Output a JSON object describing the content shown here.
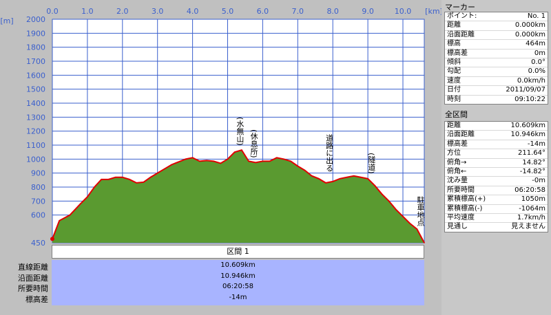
{
  "chart_data": {
    "type": "area",
    "xlabel": "",
    "ylabel": "",
    "x_unit": "[km]",
    "y_unit": "[m]",
    "x_ticks": [
      "0.0",
      "1.0",
      "2.0",
      "3.0",
      "4.0",
      "5.0",
      "6.0",
      "7.0",
      "8.0",
      "9.0",
      "10.0"
    ],
    "y_ticks": [
      "2000",
      "1900",
      "1800",
      "1700",
      "1600",
      "1500",
      "1400",
      "1300",
      "1200",
      "1100",
      "1000",
      "900",
      "800",
      "700",
      "600",
      "450"
    ],
    "xlim": [
      0,
      10.609
    ],
    "ylim": [
      450,
      2000
    ],
    "series": [
      {
        "x": [
          0.0,
          0.2,
          0.5,
          0.8,
          1.0,
          1.2,
          1.4,
          1.6,
          1.8,
          2.0,
          2.2,
          2.4,
          2.6,
          2.8,
          3.0,
          3.2,
          3.4,
          3.6,
          3.8,
          4.0,
          4.2,
          4.4,
          4.6,
          4.8,
          5.0,
          5.2,
          5.4,
          5.6,
          5.8,
          6.0,
          6.2,
          6.4,
          6.6,
          6.8,
          7.0,
          7.2,
          7.4,
          7.6,
          7.8,
          8.0,
          8.2,
          8.4,
          8.6,
          8.8,
          9.0,
          9.2,
          9.4,
          9.6,
          9.8,
          10.0,
          10.2,
          10.4,
          10.609
        ],
        "values": [
          464,
          560,
          600,
          680,
          730,
          800,
          855,
          855,
          870,
          870,
          855,
          830,
          835,
          870,
          900,
          930,
          960,
          980,
          1000,
          1010,
          985,
          990,
          985,
          970,
          1000,
          1050,
          1065,
          985,
          975,
          985,
          985,
          1010,
          1000,
          985,
          950,
          920,
          880,
          860,
          830,
          840,
          860,
          870,
          880,
          870,
          860,
          810,
          750,
          700,
          640,
          590,
          540,
          500,
          450
        ]
      }
    ],
    "annotations": [
      "(水無山)",
      "(休息所)",
      "道路に出る",
      "(隧道)",
      "駐車地点"
    ],
    "grid": true,
    "fill_color": "#5a9a30",
    "line_color": "#e00000"
  },
  "marker": {
    "title": "マーカー",
    "rows": [
      {
        "k": "ポイント:",
        "v": "No. 1"
      },
      {
        "k": "距離",
        "v": "0.000km"
      },
      {
        "k": "沿面距離",
        "v": "0.000km"
      },
      {
        "k": "標高",
        "v": "464m"
      },
      {
        "k": "標高差",
        "v": "0m"
      },
      {
        "k": "傾斜",
        "v": "0.0°"
      },
      {
        "k": "勾配",
        "v": "0.0%"
      },
      {
        "k": "速度",
        "v": "0.0km/h"
      },
      {
        "k": "日付",
        "v": "2011/09/07"
      },
      {
        "k": "時刻",
        "v": "09:10:22"
      }
    ]
  },
  "section": {
    "title": "全区間",
    "rows": [
      {
        "k": "距離",
        "v": "10.609km"
      },
      {
        "k": "沿面距離",
        "v": "10.946km"
      },
      {
        "k": "標高差",
        "v": "-14m"
      },
      {
        "k": "方位",
        "v": "211.64°"
      },
      {
        "k": "俯角→",
        "v": "14.82°"
      },
      {
        "k": "俯角←",
        "v": "-14.82°"
      },
      {
        "k": "沈み量",
        "v": "-0m"
      },
      {
        "k": "所要時間",
        "v": "06:20:58"
      },
      {
        "k": "累積標高(+)",
        "v": "1050m"
      },
      {
        "k": "累積標高(-)",
        "v": "-1064m"
      },
      {
        "k": "平均速度",
        "v": "1.7km/h"
      },
      {
        "k": "見通し",
        "v": "見えません"
      }
    ]
  },
  "summary": {
    "header": "区間 1",
    "rows": [
      {
        "k": "直線距離",
        "v": "10.609km"
      },
      {
        "k": "沿面距離",
        "v": "10.946km"
      },
      {
        "k": "所要時間",
        "v": "06:20:58"
      },
      {
        "k": "標高差",
        "v": "-14m"
      }
    ]
  }
}
